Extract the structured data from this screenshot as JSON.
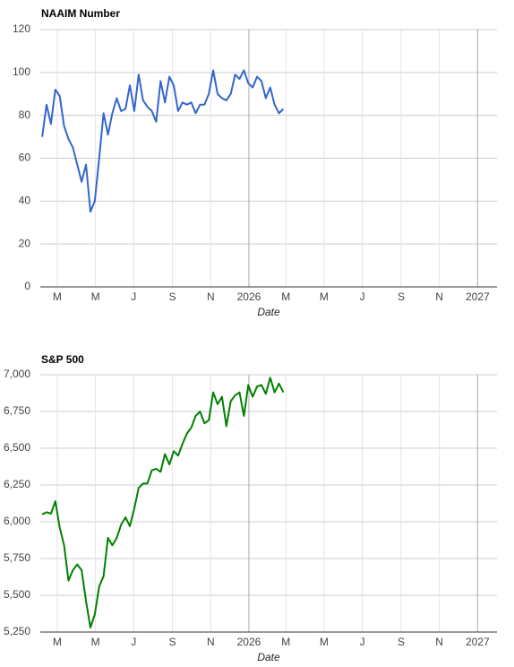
{
  "chart_data": [
    {
      "type": "line",
      "title": "NAAIM Number",
      "xlabel": "Date",
      "x": [
        "2025-02-05",
        "2025-02-12",
        "2025-02-19",
        "2025-02-26",
        "2025-03-05",
        "2025-03-12",
        "2025-03-19",
        "2025-03-26",
        "2025-04-02",
        "2025-04-09",
        "2025-04-16",
        "2025-04-23",
        "2025-04-30",
        "2025-05-07",
        "2025-05-14",
        "2025-05-21",
        "2025-05-28",
        "2025-06-04",
        "2025-06-11",
        "2025-06-18",
        "2025-06-25",
        "2025-07-02",
        "2025-07-09",
        "2025-07-16",
        "2025-07-23",
        "2025-07-30",
        "2025-08-06",
        "2025-08-13",
        "2025-08-20",
        "2025-08-27",
        "2025-09-03",
        "2025-09-10",
        "2025-09-17",
        "2025-09-24",
        "2025-10-01",
        "2025-10-08",
        "2025-10-15",
        "2025-10-22",
        "2025-10-29",
        "2025-11-05",
        "2025-11-12",
        "2025-11-19",
        "2025-11-26",
        "2025-12-03",
        "2025-12-10",
        "2025-12-17",
        "2025-12-24",
        "2025-12-31",
        "2026-01-07",
        "2026-01-14",
        "2026-01-21",
        "2026-01-28",
        "2026-02-04",
        "2026-02-11",
        "2026-02-18",
        "2026-02-25"
      ],
      "series": [
        {
          "name": "NAAIM Number",
          "color": "#3366cc",
          "values": [
            70,
            85,
            76,
            92,
            89,
            75,
            69,
            65,
            57,
            49,
            57,
            35,
            40,
            60,
            81,
            71,
            81,
            88,
            82,
            83,
            94,
            82,
            99,
            87,
            84,
            82,
            77,
            96,
            86,
            98,
            94,
            82,
            86,
            85,
            86,
            81,
            85,
            85,
            90,
            101,
            90,
            88,
            87,
            90,
            99,
            97,
            101,
            95,
            93,
            98,
            96,
            88,
            93,
            85,
            81,
            83
          ]
        }
      ],
      "xlim": [
        "2025-02-02",
        "2027-02-01"
      ],
      "xticks": [
        {
          "value": "2025-03-01",
          "label": "M"
        },
        {
          "value": "2025-05-01",
          "label": "M"
        },
        {
          "value": "2025-07-01",
          "label": "J"
        },
        {
          "value": "2025-09-01",
          "label": "S"
        },
        {
          "value": "2025-11-01",
          "label": "N"
        },
        {
          "value": "2026-01-01",
          "label": "2026"
        },
        {
          "value": "2026-03-01",
          "label": "M"
        },
        {
          "value": "2026-05-01",
          "label": "M"
        },
        {
          "value": "2026-07-01",
          "label": "J"
        },
        {
          "value": "2026-09-01",
          "label": "S"
        },
        {
          "value": "2026-11-01",
          "label": "N"
        },
        {
          "value": "2027-01-01",
          "label": "2027"
        }
      ],
      "ylim": [
        0,
        120
      ],
      "yticks": [
        0,
        20,
        40,
        60,
        80,
        100,
        120
      ],
      "grid": true
    },
    {
      "type": "line",
      "title": "S&P 500",
      "xlabel": "Date",
      "x": [
        "2025-02-05",
        "2025-02-12",
        "2025-02-19",
        "2025-02-26",
        "2025-03-05",
        "2025-03-12",
        "2025-03-19",
        "2025-03-26",
        "2025-04-02",
        "2025-04-09",
        "2025-04-16",
        "2025-04-23",
        "2025-04-30",
        "2025-05-07",
        "2025-05-14",
        "2025-05-21",
        "2025-05-28",
        "2025-06-04",
        "2025-06-11",
        "2025-06-18",
        "2025-06-25",
        "2025-07-02",
        "2025-07-09",
        "2025-07-16",
        "2025-07-23",
        "2025-07-30",
        "2025-08-06",
        "2025-08-13",
        "2025-08-20",
        "2025-08-27",
        "2025-09-03",
        "2025-09-10",
        "2025-09-17",
        "2025-09-24",
        "2025-10-01",
        "2025-10-08",
        "2025-10-15",
        "2025-10-22",
        "2025-10-29",
        "2025-11-05",
        "2025-11-12",
        "2025-11-19",
        "2025-11-26",
        "2025-12-03",
        "2025-12-10",
        "2025-12-17",
        "2025-12-24",
        "2025-12-31",
        "2026-01-07",
        "2026-01-14",
        "2026-01-21",
        "2026-01-28",
        "2026-02-04",
        "2026-02-11",
        "2026-02-18",
        "2026-02-25"
      ],
      "series": [
        {
          "name": "S&P 500",
          "color": "#008000",
          "values": [
            6050,
            6065,
            6055,
            6140,
            5960,
            5840,
            5600,
            5670,
            5710,
            5670,
            5460,
            5280,
            5370,
            5560,
            5630,
            5890,
            5840,
            5890,
            5980,
            6030,
            5970,
            6090,
            6230,
            6260,
            6260,
            6350,
            6360,
            6340,
            6460,
            6390,
            6480,
            6450,
            6530,
            6600,
            6640,
            6720,
            6750,
            6670,
            6690,
            6880,
            6800,
            6850,
            6650,
            6820,
            6860,
            6880,
            6720,
            6930,
            6850,
            6920,
            6930,
            6870,
            6980,
            6880,
            6940,
            6880
          ]
        }
      ],
      "xlim": [
        "2025-02-02",
        "2027-02-01"
      ],
      "xticks": [
        {
          "value": "2025-03-01",
          "label": "M"
        },
        {
          "value": "2025-05-01",
          "label": "M"
        },
        {
          "value": "2025-07-01",
          "label": "J"
        },
        {
          "value": "2025-09-01",
          "label": "S"
        },
        {
          "value": "2025-11-01",
          "label": "N"
        },
        {
          "value": "2026-01-01",
          "label": "2026"
        },
        {
          "value": "2026-03-01",
          "label": "M"
        },
        {
          "value": "2026-05-01",
          "label": "M"
        },
        {
          "value": "2026-07-01",
          "label": "J"
        },
        {
          "value": "2026-09-01",
          "label": "S"
        },
        {
          "value": "2026-11-01",
          "label": "N"
        },
        {
          "value": "2027-01-01",
          "label": "2027"
        }
      ],
      "ylim": [
        5250,
        7000
      ],
      "yticks": [
        {
          "value": 5250,
          "label": "5,250"
        },
        {
          "value": 5500,
          "label": "5,500"
        },
        {
          "value": 5750,
          "label": "5,750"
        },
        {
          "value": 6000,
          "label": "6,000"
        },
        {
          "value": 6250,
          "label": "6,250"
        },
        {
          "value": 6500,
          "label": "6,500"
        },
        {
          "value": 6750,
          "label": "6,750"
        },
        {
          "value": 7000,
          "label": "7,000"
        }
      ],
      "grid": true
    }
  ]
}
